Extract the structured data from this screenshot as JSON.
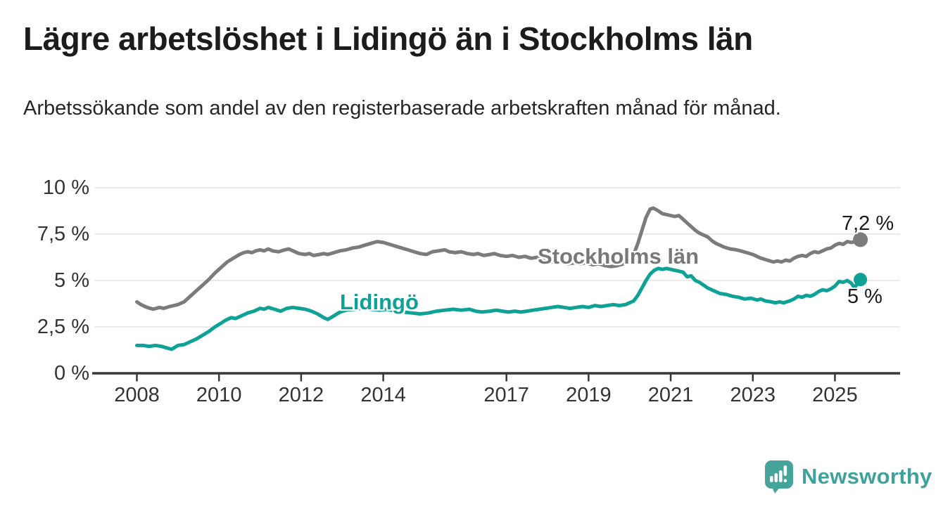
{
  "header": {
    "title": "Lägre arbetslöshet i Lidingö än i Stockholms län",
    "subtitle": "Arbetssökande som andel av den registerbaserade arbetskraften månad för månad."
  },
  "branding": {
    "logo_text": "Newsworthy",
    "logo_icon": "speech-bubble-bar-chart-exclamation",
    "logo_color": "#45a39b"
  },
  "chart_data": {
    "type": "line",
    "title": "Lägre arbetslöshet i Lidingö än i Stockholms län",
    "xlabel": "",
    "ylabel": "",
    "grid": true,
    "grid_color": "#e4e4e4",
    "axis_color": "#383838",
    "tick_label_color": "#333333",
    "legend_position": "inline-labels-on-lines",
    "x_axis": {
      "range_years": [
        2007.0,
        2026.5
      ],
      "ticks": [
        {
          "value": 2008,
          "label": "2008"
        },
        {
          "value": 2010,
          "label": "2010"
        },
        {
          "value": 2012,
          "label": "2012"
        },
        {
          "value": 2014,
          "label": "2014"
        },
        {
          "value": 2017,
          "label": "2017"
        },
        {
          "value": 2019,
          "label": "2019"
        },
        {
          "value": 2021,
          "label": "2021"
        },
        {
          "value": 2023,
          "label": "2023"
        },
        {
          "value": 2025,
          "label": "2025"
        }
      ]
    },
    "y_axis": {
      "range_percent": [
        0,
        10
      ],
      "ticks": [
        {
          "value": 0,
          "label": "0 %"
        },
        {
          "value": 2.5,
          "label": "2,5 %"
        },
        {
          "value": 5,
          "label": "5 %"
        },
        {
          "value": 7.5,
          "label": "7,5 %"
        },
        {
          "value": 10,
          "label": "10 %"
        }
      ]
    },
    "series": [
      {
        "name": "Stockholms län",
        "color": "#7b7b7b",
        "end_label": "7,2 %",
        "end_value_percent": 7.2,
        "end_dot": true,
        "points": [
          [
            2008.0,
            3.85
          ],
          [
            2008.1,
            3.7
          ],
          [
            2008.25,
            3.55
          ],
          [
            2008.4,
            3.45
          ],
          [
            2008.55,
            3.55
          ],
          [
            2008.65,
            3.5
          ],
          [
            2008.8,
            3.6
          ],
          [
            2009.0,
            3.7
          ],
          [
            2009.15,
            3.85
          ],
          [
            2009.3,
            4.15
          ],
          [
            2009.45,
            4.45
          ],
          [
            2009.6,
            4.75
          ],
          [
            2009.75,
            5.05
          ],
          [
            2009.9,
            5.4
          ],
          [
            2010.05,
            5.7
          ],
          [
            2010.2,
            6.0
          ],
          [
            2010.35,
            6.2
          ],
          [
            2010.5,
            6.4
          ],
          [
            2010.6,
            6.5
          ],
          [
            2010.7,
            6.55
          ],
          [
            2010.8,
            6.5
          ],
          [
            2010.9,
            6.6
          ],
          [
            2011.0,
            6.65
          ],
          [
            2011.1,
            6.6
          ],
          [
            2011.2,
            6.7
          ],
          [
            2011.3,
            6.6
          ],
          [
            2011.45,
            6.55
          ],
          [
            2011.6,
            6.65
          ],
          [
            2011.7,
            6.7
          ],
          [
            2011.8,
            6.6
          ],
          [
            2011.95,
            6.45
          ],
          [
            2012.1,
            6.4
          ],
          [
            2012.2,
            6.45
          ],
          [
            2012.3,
            6.35
          ],
          [
            2012.45,
            6.4
          ],
          [
            2012.55,
            6.45
          ],
          [
            2012.65,
            6.4
          ],
          [
            2012.8,
            6.5
          ],
          [
            2012.95,
            6.6
          ],
          [
            2013.1,
            6.65
          ],
          [
            2013.25,
            6.75
          ],
          [
            2013.4,
            6.8
          ],
          [
            2013.55,
            6.9
          ],
          [
            2013.7,
            7.0
          ],
          [
            2013.85,
            7.1
          ],
          [
            2014.0,
            7.05
          ],
          [
            2014.15,
            6.95
          ],
          [
            2014.3,
            6.85
          ],
          [
            2014.45,
            6.75
          ],
          [
            2014.6,
            6.65
          ],
          [
            2014.75,
            6.55
          ],
          [
            2014.9,
            6.45
          ],
          [
            2015.05,
            6.4
          ],
          [
            2015.2,
            6.55
          ],
          [
            2015.35,
            6.6
          ],
          [
            2015.5,
            6.65
          ],
          [
            2015.6,
            6.55
          ],
          [
            2015.75,
            6.5
          ],
          [
            2015.9,
            6.55
          ],
          [
            2016.05,
            6.45
          ],
          [
            2016.2,
            6.4
          ],
          [
            2016.3,
            6.45
          ],
          [
            2016.45,
            6.35
          ],
          [
            2016.6,
            6.4
          ],
          [
            2016.7,
            6.45
          ],
          [
            2016.85,
            6.35
          ],
          [
            2017.0,
            6.3
          ],
          [
            2017.15,
            6.35
          ],
          [
            2017.3,
            6.25
          ],
          [
            2017.45,
            6.3
          ],
          [
            2017.6,
            6.2
          ],
          [
            2017.75,
            6.25
          ],
          [
            2017.9,
            6.15
          ],
          [
            2018.05,
            6.05
          ],
          [
            2018.2,
            5.95
          ],
          [
            2018.35,
            6.0
          ],
          [
            2018.5,
            5.9
          ],
          [
            2018.65,
            5.95
          ],
          [
            2018.8,
            5.9
          ],
          [
            2018.95,
            5.95
          ],
          [
            2019.1,
            5.85
          ],
          [
            2019.25,
            5.9
          ],
          [
            2019.4,
            5.8
          ],
          [
            2019.55,
            5.75
          ],
          [
            2019.7,
            5.8
          ],
          [
            2019.85,
            5.9
          ],
          [
            2020.0,
            6.05
          ],
          [
            2020.1,
            6.4
          ],
          [
            2020.2,
            7.0
          ],
          [
            2020.3,
            7.7
          ],
          [
            2020.4,
            8.4
          ],
          [
            2020.5,
            8.85
          ],
          [
            2020.58,
            8.9
          ],
          [
            2020.7,
            8.75
          ],
          [
            2020.8,
            8.6
          ],
          [
            2020.9,
            8.55
          ],
          [
            2021.0,
            8.5
          ],
          [
            2021.1,
            8.45
          ],
          [
            2021.2,
            8.5
          ],
          [
            2021.3,
            8.3
          ],
          [
            2021.4,
            8.1
          ],
          [
            2021.5,
            7.9
          ],
          [
            2021.6,
            7.7
          ],
          [
            2021.7,
            7.55
          ],
          [
            2021.8,
            7.45
          ],
          [
            2021.9,
            7.35
          ],
          [
            2022.0,
            7.15
          ],
          [
            2022.1,
            7.0
          ],
          [
            2022.2,
            6.9
          ],
          [
            2022.3,
            6.8
          ],
          [
            2022.45,
            6.7
          ],
          [
            2022.6,
            6.65
          ],
          [
            2022.7,
            6.6
          ],
          [
            2022.85,
            6.5
          ],
          [
            2023.0,
            6.4
          ],
          [
            2023.1,
            6.3
          ],
          [
            2023.2,
            6.2
          ],
          [
            2023.35,
            6.1
          ],
          [
            2023.5,
            6.0
          ],
          [
            2023.6,
            6.05
          ],
          [
            2023.7,
            6.0
          ],
          [
            2023.8,
            6.1
          ],
          [
            2023.9,
            6.05
          ],
          [
            2024.0,
            6.2
          ],
          [
            2024.1,
            6.3
          ],
          [
            2024.2,
            6.35
          ],
          [
            2024.3,
            6.3
          ],
          [
            2024.4,
            6.45
          ],
          [
            2024.5,
            6.55
          ],
          [
            2024.6,
            6.5
          ],
          [
            2024.7,
            6.6
          ],
          [
            2024.8,
            6.7
          ],
          [
            2024.9,
            6.75
          ],
          [
            2025.0,
            6.9
          ],
          [
            2025.1,
            7.0
          ],
          [
            2025.2,
            6.95
          ],
          [
            2025.3,
            7.1
          ],
          [
            2025.4,
            7.05
          ],
          [
            2025.5,
            7.1
          ],
          [
            2025.62,
            7.2
          ]
        ]
      },
      {
        "name": "Lidingö",
        "color": "#0ea296",
        "end_label": "5 %",
        "end_value_percent": 5.0,
        "end_dot": true,
        "points": [
          [
            2008.0,
            1.5
          ],
          [
            2008.15,
            1.5
          ],
          [
            2008.3,
            1.45
          ],
          [
            2008.45,
            1.5
          ],
          [
            2008.6,
            1.45
          ],
          [
            2008.75,
            1.35
          ],
          [
            2008.85,
            1.3
          ],
          [
            2009.0,
            1.5
          ],
          [
            2009.15,
            1.55
          ],
          [
            2009.3,
            1.7
          ],
          [
            2009.45,
            1.85
          ],
          [
            2009.6,
            2.05
          ],
          [
            2009.75,
            2.25
          ],
          [
            2009.9,
            2.5
          ],
          [
            2010.05,
            2.7
          ],
          [
            2010.15,
            2.85
          ],
          [
            2010.3,
            3.0
          ],
          [
            2010.4,
            2.95
          ],
          [
            2010.55,
            3.1
          ],
          [
            2010.7,
            3.25
          ],
          [
            2010.85,
            3.35
          ],
          [
            2011.0,
            3.5
          ],
          [
            2011.1,
            3.45
          ],
          [
            2011.2,
            3.55
          ],
          [
            2011.35,
            3.45
          ],
          [
            2011.5,
            3.35
          ],
          [
            2011.65,
            3.5
          ],
          [
            2011.8,
            3.55
          ],
          [
            2011.95,
            3.5
          ],
          [
            2012.1,
            3.45
          ],
          [
            2012.25,
            3.35
          ],
          [
            2012.4,
            3.2
          ],
          [
            2012.55,
            3.0
          ],
          [
            2012.65,
            2.9
          ],
          [
            2012.8,
            3.1
          ],
          [
            2012.95,
            3.3
          ],
          [
            2013.1,
            3.4
          ],
          [
            2013.3,
            3.45
          ],
          [
            2013.5,
            3.5
          ],
          [
            2013.7,
            3.45
          ],
          [
            2013.9,
            3.4
          ],
          [
            2014.1,
            3.45
          ],
          [
            2014.3,
            3.35
          ],
          [
            2014.5,
            3.3
          ],
          [
            2014.7,
            3.25
          ],
          [
            2014.9,
            3.2
          ],
          [
            2015.1,
            3.25
          ],
          [
            2015.3,
            3.35
          ],
          [
            2015.5,
            3.4
          ],
          [
            2015.7,
            3.45
          ],
          [
            2015.9,
            3.4
          ],
          [
            2016.1,
            3.45
          ],
          [
            2016.25,
            3.35
          ],
          [
            2016.4,
            3.3
          ],
          [
            2016.6,
            3.35
          ],
          [
            2016.75,
            3.4
          ],
          [
            2016.9,
            3.35
          ],
          [
            2017.05,
            3.3
          ],
          [
            2017.2,
            3.35
          ],
          [
            2017.35,
            3.3
          ],
          [
            2017.5,
            3.35
          ],
          [
            2017.65,
            3.4
          ],
          [
            2017.8,
            3.45
          ],
          [
            2017.95,
            3.5
          ],
          [
            2018.1,
            3.55
          ],
          [
            2018.25,
            3.6
          ],
          [
            2018.4,
            3.55
          ],
          [
            2018.55,
            3.5
          ],
          [
            2018.7,
            3.55
          ],
          [
            2018.85,
            3.6
          ],
          [
            2019.0,
            3.55
          ],
          [
            2019.15,
            3.65
          ],
          [
            2019.3,
            3.6
          ],
          [
            2019.45,
            3.65
          ],
          [
            2019.6,
            3.7
          ],
          [
            2019.75,
            3.65
          ],
          [
            2019.9,
            3.7
          ],
          [
            2020.0,
            3.8
          ],
          [
            2020.1,
            3.9
          ],
          [
            2020.2,
            4.2
          ],
          [
            2020.3,
            4.6
          ],
          [
            2020.4,
            5.0
          ],
          [
            2020.5,
            5.35
          ],
          [
            2020.6,
            5.55
          ],
          [
            2020.7,
            5.65
          ],
          [
            2020.8,
            5.6
          ],
          [
            2020.9,
            5.65
          ],
          [
            2021.0,
            5.6
          ],
          [
            2021.1,
            5.55
          ],
          [
            2021.2,
            5.5
          ],
          [
            2021.3,
            5.45
          ],
          [
            2021.4,
            5.2
          ],
          [
            2021.5,
            5.25
          ],
          [
            2021.6,
            5.0
          ],
          [
            2021.7,
            4.9
          ],
          [
            2021.8,
            4.75
          ],
          [
            2021.9,
            4.6
          ],
          [
            2022.0,
            4.5
          ],
          [
            2022.1,
            4.4
          ],
          [
            2022.2,
            4.3
          ],
          [
            2022.35,
            4.25
          ],
          [
            2022.5,
            4.15
          ],
          [
            2022.65,
            4.1
          ],
          [
            2022.8,
            4.0
          ],
          [
            2022.95,
            4.05
          ],
          [
            2023.1,
            3.95
          ],
          [
            2023.2,
            4.0
          ],
          [
            2023.3,
            3.9
          ],
          [
            2023.45,
            3.85
          ],
          [
            2023.55,
            3.8
          ],
          [
            2023.65,
            3.85
          ],
          [
            2023.75,
            3.8
          ],
          [
            2023.9,
            3.9
          ],
          [
            2024.0,
            4.0
          ],
          [
            2024.1,
            4.15
          ],
          [
            2024.2,
            4.1
          ],
          [
            2024.3,
            4.2
          ],
          [
            2024.4,
            4.15
          ],
          [
            2024.5,
            4.25
          ],
          [
            2024.6,
            4.4
          ],
          [
            2024.7,
            4.5
          ],
          [
            2024.8,
            4.45
          ],
          [
            2024.9,
            4.55
          ],
          [
            2025.0,
            4.7
          ],
          [
            2025.1,
            4.95
          ],
          [
            2025.2,
            4.9
          ],
          [
            2025.3,
            5.0
          ],
          [
            2025.4,
            4.85
          ],
          [
            2025.48,
            4.6
          ],
          [
            2025.56,
            4.9
          ],
          [
            2025.62,
            5.05
          ]
        ]
      }
    ]
  }
}
